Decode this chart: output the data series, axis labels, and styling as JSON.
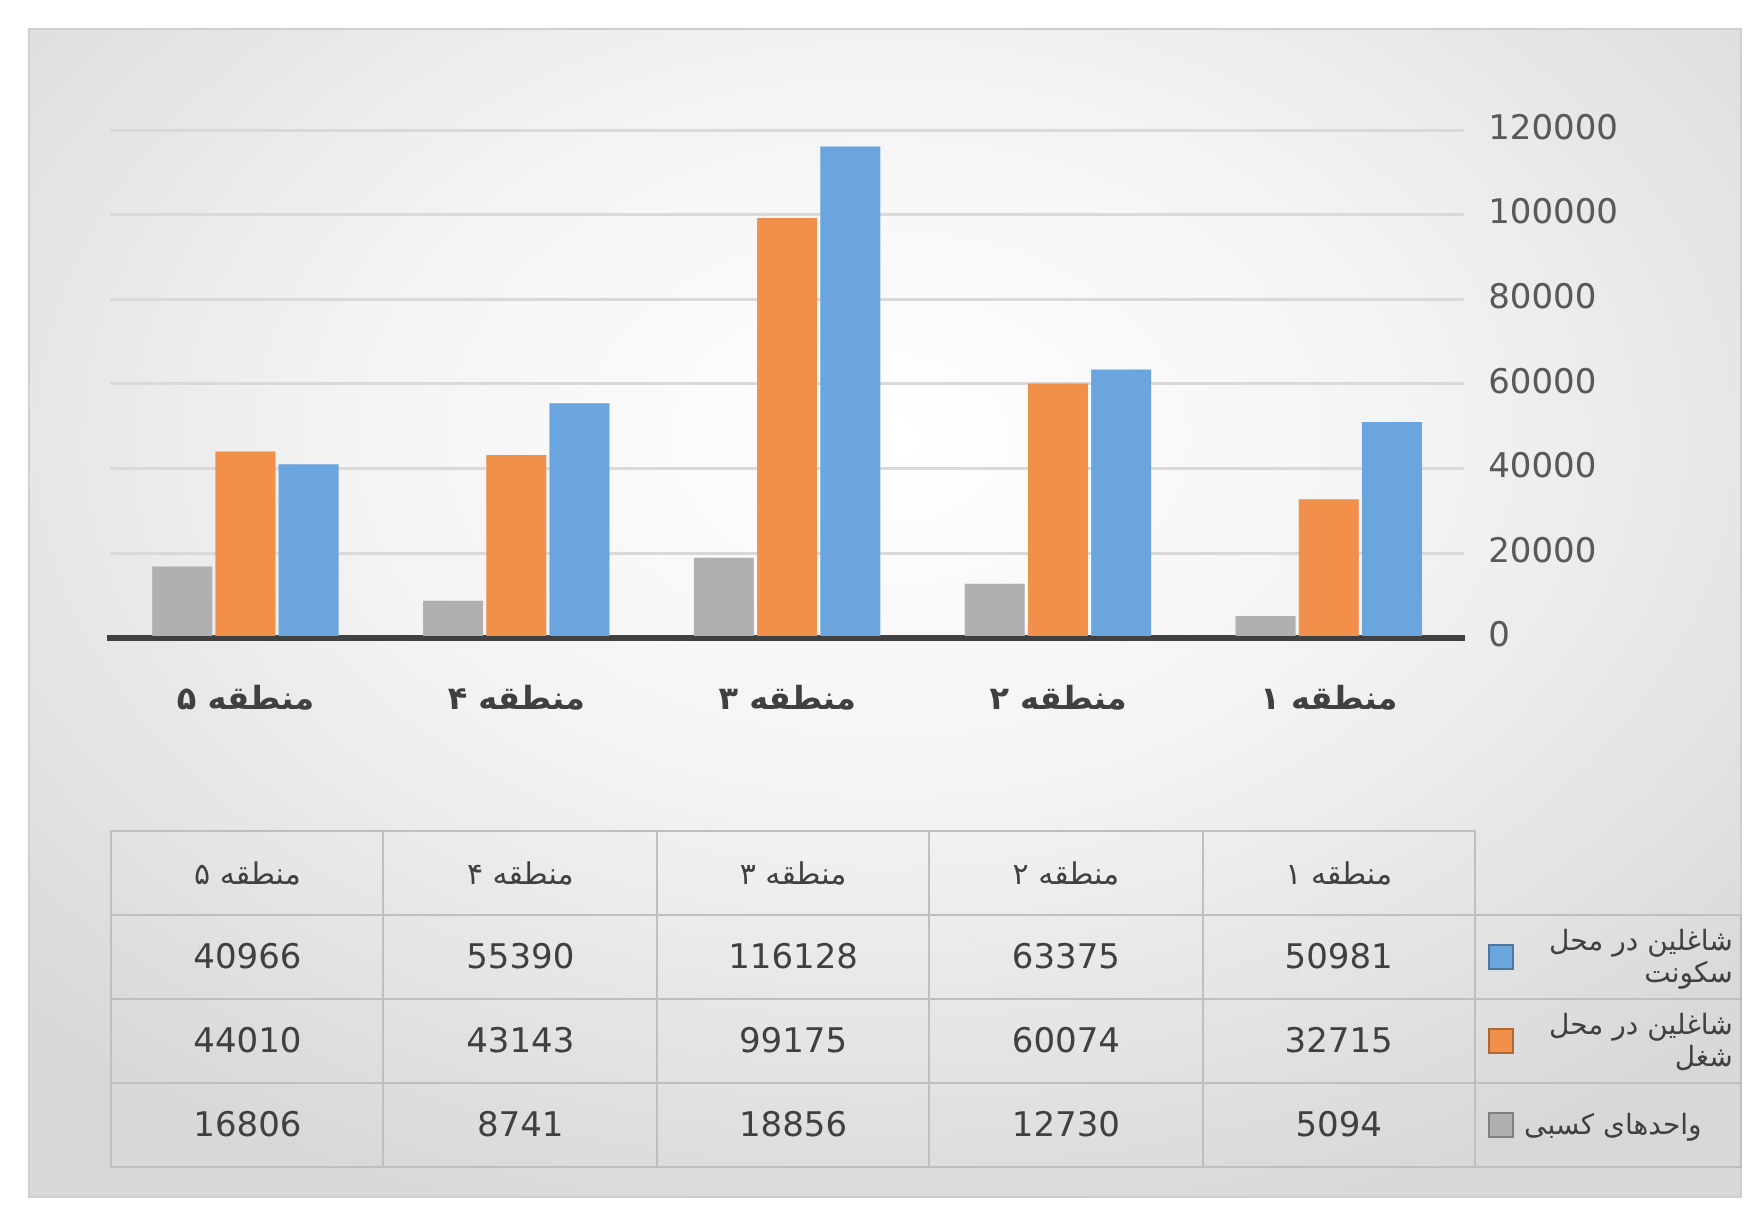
{
  "chart_data": {
    "type": "bar",
    "categories": [
      "منطقه ۵",
      "منطقه ۴",
      "منطقه ۳",
      "منطقه ۲",
      "منطقه ۱"
    ],
    "series": [
      {
        "name": "شاغلین در محل سکونت",
        "color": "#6aa5dd",
        "values": [
          40966,
          55390,
          116128,
          63375,
          50981
        ]
      },
      {
        "name": "شاغلین در محل شغل",
        "color": "#f0904a",
        "values": [
          44010,
          43143,
          99175,
          60074,
          32715
        ]
      },
      {
        "name": "واحدهای کسبی",
        "color": "#b0b0b0",
        "values": [
          16806,
          8741,
          18856,
          12730,
          5094
        ]
      }
    ],
    "ylim": [
      0,
      120000
    ],
    "yticks": [
      0,
      20000,
      40000,
      60000,
      80000,
      100000,
      120000
    ],
    "grid": "y",
    "legend": "bottom",
    "data_labels": true
  }
}
